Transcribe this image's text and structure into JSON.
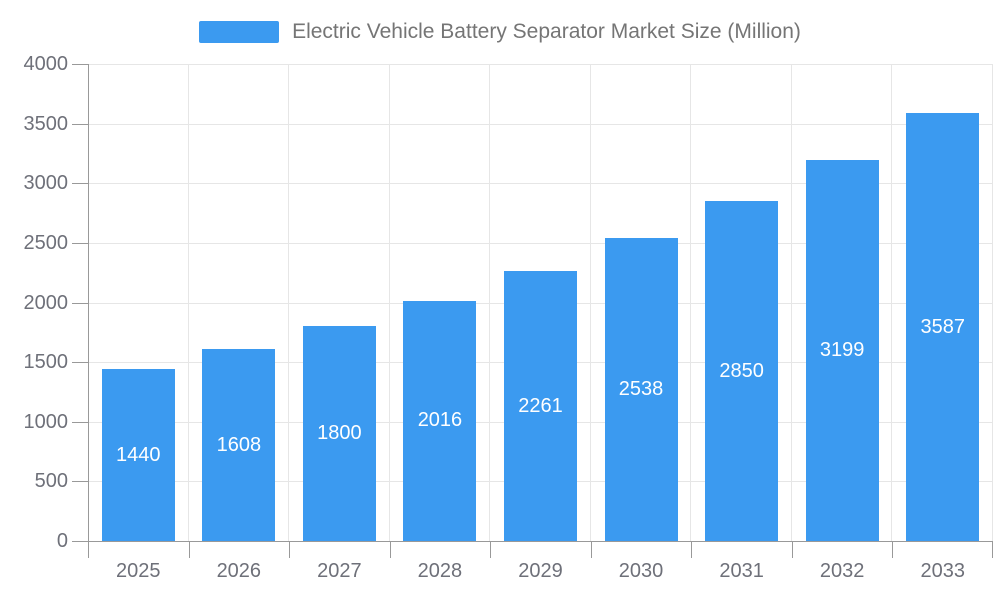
{
  "chart_data": {
    "type": "bar",
    "title": "Electric Vehicle Battery Separator Market Size (Million)",
    "legend_entries": [
      "Electric Vehicle Battery Separator Market Size (Million)"
    ],
    "legend_position": "top",
    "categories": [
      "2025",
      "2026",
      "2027",
      "2028",
      "2029",
      "2030",
      "2031",
      "2032",
      "2033"
    ],
    "series": [
      {
        "name": "Electric Vehicle Battery Separator Market Size (Million)",
        "values": [
          1440,
          1608,
          1800,
          2016,
          2261,
          2538,
          2850,
          3199,
          3587
        ]
      }
    ],
    "value_labels": [
      "1440",
      "1608",
      "1800",
      "2016",
      "2261",
      "2538",
      "2850",
      "3199",
      "3587"
    ],
    "xlabel": "",
    "ylabel": "",
    "ylim": [
      0,
      4000
    ],
    "yticks": [
      0,
      500,
      1000,
      1500,
      2000,
      2500,
      3000,
      3500,
      4000
    ],
    "grid": true
  },
  "colors": {
    "bar": "#3b9af0",
    "grid": "#e6e6e6",
    "axis": "#999999",
    "axis_label": "#6e7079",
    "title_text": "#757575",
    "value_label": "#ffffff",
    "background": "#ffffff"
  }
}
